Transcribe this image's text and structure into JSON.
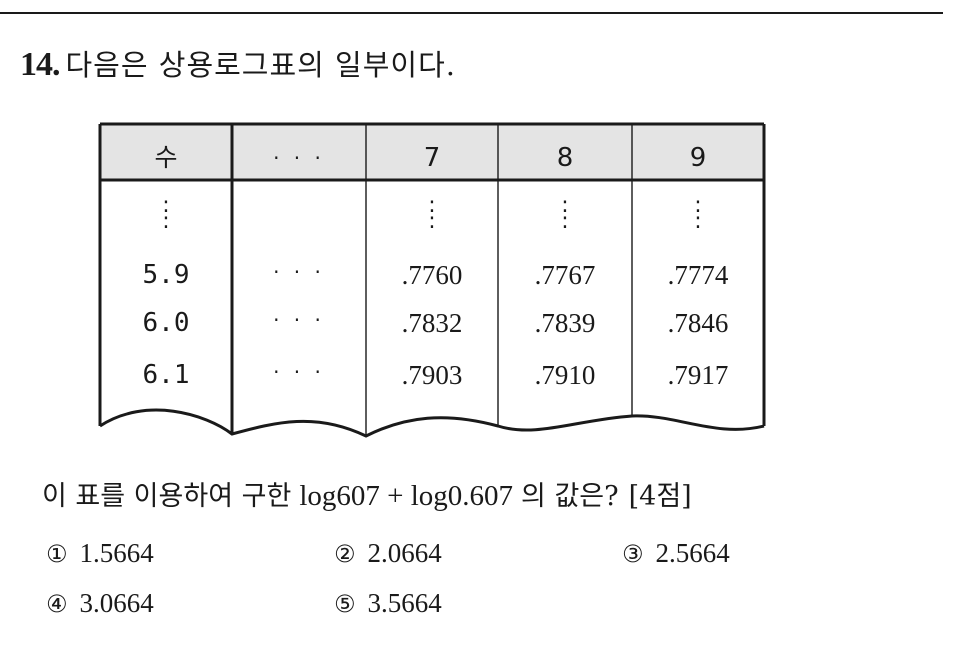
{
  "question": {
    "number": "14.",
    "text": "다음은 상용로그표의 일부이다."
  },
  "log_table": {
    "headers": [
      "수",
      "· · ·",
      "7",
      "8",
      "9"
    ],
    "continuation_mark": ":",
    "rows": [
      {
        "label": "5.9",
        "skip": "· · ·",
        "values": [
          ".7760",
          ".7767",
          ".7774"
        ]
      },
      {
        "label": "6.0",
        "skip": "· · ·",
        "values": [
          ".7832",
          ".7839",
          ".7846"
        ]
      },
      {
        "label": "6.1",
        "skip": "· · ·",
        "values": [
          ".7903",
          ".7910",
          ".7917"
        ]
      }
    ]
  },
  "prompt": {
    "before": "이 표를 이용하여 구한",
    "expression": "log607 + log0.607",
    "after": "의 값은?",
    "points": "[4점]"
  },
  "choices": [
    {
      "mark": "①",
      "value": "1.5664"
    },
    {
      "mark": "②",
      "value": "2.0664"
    },
    {
      "mark": "③",
      "value": "2.5664"
    },
    {
      "mark": "④",
      "value": "3.0664"
    },
    {
      "mark": "⑤",
      "value": "3.5664"
    }
  ],
  "colors": {
    "header_fill": "#e4e4e4",
    "ink": "#1a1a1a"
  }
}
